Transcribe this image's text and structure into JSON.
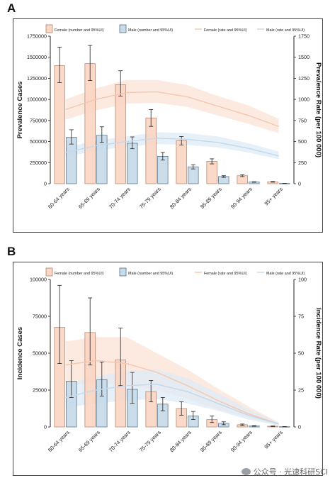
{
  "panels": [
    {
      "letter": "A",
      "legend": {
        "female_bar": "Female (number and 95%UI)",
        "male_bar": "Male (number and 95%UI)",
        "female_line": "Female (rate and 95%UI)",
        "male_line": "Male (rate and 95%UI)"
      },
      "chart_data": {
        "type": "bar",
        "categories": [
          "60-64 years",
          "65-69 years",
          "70-74 years",
          "75-79 years",
          "80-84 years",
          "85-89 years",
          "90-94 years",
          "95+ years"
        ],
        "ylabel": "Prevalence Cases",
        "y2label": "Prevalence Rate (per 100 000)",
        "ylim": [
          0,
          1750000
        ],
        "yticks": [
          0,
          250000,
          500000,
          750000,
          1000000,
          1250000,
          1500000,
          1750000
        ],
        "ytick_labels": [
          "0",
          "250000",
          "500000",
          "750000",
          "1000000",
          "1250000",
          "1500000",
          "1750000"
        ],
        "y2lim": [
          0,
          1750
        ],
        "y2ticks": [
          0,
          250,
          500,
          750,
          1000,
          1250,
          1500,
          1750
        ],
        "y2tick_labels": [
          "0",
          "250",
          "500",
          "750",
          "1000",
          "1250",
          "1500",
          "1750"
        ],
        "series": [
          {
            "name": "Female (number and 95%UI)",
            "kind": "bar",
            "values": [
              1400000,
              1425000,
              1175000,
              780000,
              510000,
              265000,
              95000,
              22000
            ],
            "lower": [
              1200000,
              1225000,
              1040000,
              680000,
              460000,
              235000,
              85000,
              18000
            ],
            "upper": [
              1620000,
              1640000,
              1340000,
              880000,
              560000,
              295000,
              105000,
              26000
            ]
          },
          {
            "name": "Male (number and 95%UI)",
            "kind": "bar",
            "values": [
              550000,
              575000,
              480000,
              325000,
              200000,
              85000,
              20000,
              3000
            ],
            "lower": [
              470000,
              490000,
              415000,
              280000,
              175000,
              75000,
              17000,
              2500
            ],
            "upper": [
              640000,
              675000,
              555000,
              370000,
              225000,
              95000,
              23000,
              3500
            ]
          },
          {
            "name": "Female (rate and 95%UI)",
            "kind": "line",
            "values": [
              880,
              1000,
              1080,
              1090,
              1030,
              920,
              810,
              680
            ],
            "lower": [
              760,
              870,
              950,
              960,
              910,
              810,
              710,
              600
            ],
            "upper": [
              1000,
              1130,
              1230,
              1230,
              1170,
              1040,
              930,
              770
            ]
          },
          {
            "name": "Male (rate and 95%UI)",
            "kind": "line",
            "values": [
              370,
              450,
              500,
              540,
              525,
              490,
              420,
              330
            ],
            "lower": [
              320,
              390,
              440,
              470,
              460,
              430,
              370,
              290
            ],
            "upper": [
              430,
              510,
              560,
              610,
              600,
              560,
              480,
              380
            ]
          }
        ],
        "colors": {
          "female_fill": "#fad6c4",
          "female_stroke": "#b98068",
          "male_fill": "#c7dbea",
          "male_stroke": "#4f6f86",
          "female_line": "#f6c6ad",
          "female_band": "#fbe3d6",
          "male_line": "#c2d8eb",
          "male_band": "#deebf5"
        }
      }
    },
    {
      "letter": "B",
      "legend": {
        "female_bar": "Female (number and 95%UI)",
        "male_bar": "Male (number and 95%UI)",
        "female_line": "Female (rate and 95%UI)",
        "male_line": "Male (rate and 95%UI)"
      },
      "chart_data": {
        "type": "bar",
        "categories": [
          "60-64 years",
          "65-69 years",
          "70-74 years",
          "75-79 years",
          "80-84 years",
          "85-89 years",
          "90-94 years",
          "95+ years"
        ],
        "ylabel": "Incidence Cases",
        "y2label": "Incidence Rate (per 100 000)",
        "ylim": [
          0,
          100000
        ],
        "yticks": [
          0,
          25000,
          50000,
          75000,
          100000
        ],
        "ytick_labels": [
          "0",
          "25000",
          "50000",
          "75000",
          "100000"
        ],
        "y2lim": [
          0,
          100
        ],
        "y2ticks": [
          0,
          25,
          50,
          75,
          100
        ],
        "y2tick_labels": [
          "0",
          "25",
          "50",
          "75",
          "100"
        ],
        "series": [
          {
            "name": "Female (number and 95%UI)",
            "kind": "bar",
            "values": [
              67500,
              64000,
              45500,
              24000,
              12500,
              5000,
              1500,
              500
            ],
            "lower": [
              43000,
              42000,
              28000,
              17000,
              8000,
              3000,
              1000,
              300
            ],
            "upper": [
              96000,
              87500,
              67000,
              31500,
              17000,
              7500,
              2000,
              700
            ]
          },
          {
            "name": "Male (number and 95%UI)",
            "kind": "bar",
            "values": [
              31000,
              32000,
              25500,
              15500,
              7500,
              2500,
              700,
              200
            ],
            "lower": [
              20000,
              21000,
              16000,
              11000,
              5000,
              1500,
              500,
              100
            ],
            "upper": [
              45000,
              44000,
              37000,
              20000,
              10500,
              3500,
              900,
              300
            ]
          },
          {
            "name": "Female (rate and 95%UI)",
            "kind": "line",
            "values": [
              42,
              45,
              43,
              37,
              28,
              18,
              9,
              2
            ],
            "lower": [
              28,
              30,
              28,
              25,
              19,
              12,
              6,
              1
            ],
            "upper": [
              58,
              61,
              61,
              50,
              39,
              26,
              14,
              3
            ]
          },
          {
            "name": "Male (rate and 95%UI)",
            "kind": "line",
            "values": [
              20,
              25,
              28,
              29,
              24,
              16,
              8,
              2
            ],
            "lower": [
              13,
              16,
              18,
              19,
              16,
              11,
              5,
              1
            ],
            "upper": [
              29,
              34,
              38,
              39,
              33,
              23,
              12,
              3
            ]
          }
        ],
        "colors": {
          "female_fill": "#fad6c4",
          "female_stroke": "#b98068",
          "male_fill": "#c7dbea",
          "male_stroke": "#4f6f86",
          "female_line": "#f6c6ad",
          "female_band": "#fbe3d6",
          "male_line": "#c2d8eb",
          "male_band": "#deebf5"
        }
      }
    }
  ],
  "watermark": "公众号 · 光速科研SCI"
}
